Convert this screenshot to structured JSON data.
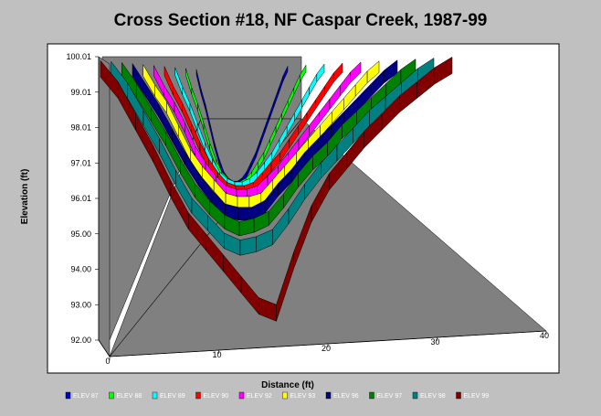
{
  "chart_data": {
    "type": "area",
    "title": "Cross Section #18, NF Caspar Creek, 1987-99",
    "xlabel": "Distance (ft)",
    "ylabel": "Elevation (ft)",
    "y_ticks": [
      "100.01",
      "99.01",
      "98.01",
      "97.01",
      "96.01",
      "95.00",
      "94.00",
      "93.00",
      "92.00"
    ],
    "x_ticks": [
      "0",
      "10",
      "20",
      "30",
      "40"
    ],
    "ylim": [
      92.0,
      100.01
    ],
    "xlim": [
      0,
      40
    ],
    "view": "3d-ribbon",
    "background": "#808080",
    "legend_position": "bottom",
    "x": [
      0,
      2,
      4,
      6,
      8,
      10,
      12,
      14,
      16,
      18,
      20,
      22,
      24,
      26,
      28,
      30,
      32,
      34,
      36,
      38,
      40
    ],
    "series": [
      {
        "name": "ELEV 87",
        "color": "#0000c0",
        "values": [
          99.9,
          99.3,
          98.8,
          98.2,
          97.6,
          97.1,
          96.7,
          96.5,
          96.4,
          96.4,
          96.5,
          96.7,
          97.0,
          97.3,
          97.7,
          98.1,
          98.5,
          98.9,
          99.3,
          99.7,
          100.0
        ]
      },
      {
        "name": "ELEV 88",
        "color": "#00ff00",
        "values": [
          99.9,
          99.3,
          98.8,
          98.2,
          97.6,
          97.1,
          96.7,
          96.5,
          96.4,
          96.4,
          96.5,
          96.7,
          97.0,
          97.3,
          97.7,
          98.1,
          98.5,
          98.9,
          99.3,
          99.7,
          100.0
        ]
      },
      {
        "name": "ELEV 89",
        "color": "#00ffff",
        "values": [
          99.9,
          99.3,
          98.8,
          98.2,
          97.6,
          97.1,
          96.7,
          96.5,
          96.4,
          96.4,
          96.5,
          96.7,
          97.0,
          97.3,
          97.7,
          98.1,
          98.5,
          98.9,
          99.3,
          99.7,
          100.0
        ]
      },
      {
        "name": "ELEV 90",
        "color": "#ff0000",
        "values": [
          99.9,
          99.3,
          98.8,
          98.2,
          97.6,
          97.1,
          96.7,
          96.4,
          96.3,
          96.3,
          96.4,
          96.7,
          97.0,
          97.3,
          97.7,
          98.1,
          98.5,
          98.9,
          99.3,
          99.7,
          100.0
        ]
      },
      {
        "name": "ELEV 92",
        "color": "#ff00ff",
        "values": [
          99.9,
          99.3,
          98.8,
          98.2,
          97.5,
          97.0,
          96.6,
          96.3,
          96.2,
          96.2,
          96.3,
          96.6,
          96.9,
          97.3,
          97.7,
          98.1,
          98.5,
          98.9,
          99.3,
          99.7,
          100.0
        ]
      },
      {
        "name": "ELEV 93",
        "color": "#ffff00",
        "values": [
          99.9,
          99.3,
          98.8,
          98.1,
          97.4,
          96.9,
          96.5,
          96.1,
          96.0,
          96.0,
          96.1,
          96.5,
          96.9,
          97.3,
          97.7,
          98.1,
          98.5,
          98.9,
          99.3,
          99.7,
          100.0
        ]
      },
      {
        "name": "ELEV 96",
        "color": "#000080",
        "values": [
          99.9,
          99.3,
          98.7,
          98.0,
          97.3,
          96.7,
          96.2,
          95.8,
          95.7,
          95.7,
          95.9,
          96.4,
          96.8,
          97.3,
          97.7,
          98.1,
          98.5,
          98.9,
          99.3,
          99.7,
          100.0
        ]
      },
      {
        "name": "ELEV 97",
        "color": "#008000",
        "values": [
          99.9,
          99.3,
          98.6,
          97.9,
          97.1,
          96.4,
          95.9,
          95.5,
          95.3,
          95.4,
          95.6,
          96.1,
          96.7,
          97.2,
          97.6,
          98.1,
          98.5,
          98.9,
          99.3,
          99.7,
          100.0
        ]
      },
      {
        "name": "ELEV 98",
        "color": "#008080",
        "values": [
          99.9,
          99.3,
          98.5,
          97.7,
          96.8,
          96.0,
          95.5,
          95.0,
          94.8,
          94.9,
          95.1,
          95.7,
          96.4,
          97.0,
          97.5,
          98.0,
          98.5,
          98.9,
          99.3,
          99.7,
          100.0
        ]
      },
      {
        "name": "ELEV 99",
        "color": "#800000",
        "values": [
          99.9,
          99.3,
          98.4,
          97.5,
          96.5,
          95.6,
          95.0,
          94.4,
          93.8,
          93.2,
          93.0,
          94.5,
          95.8,
          96.7,
          97.3,
          97.9,
          98.4,
          98.9,
          99.3,
          99.7,
          100.0
        ]
      }
    ]
  }
}
